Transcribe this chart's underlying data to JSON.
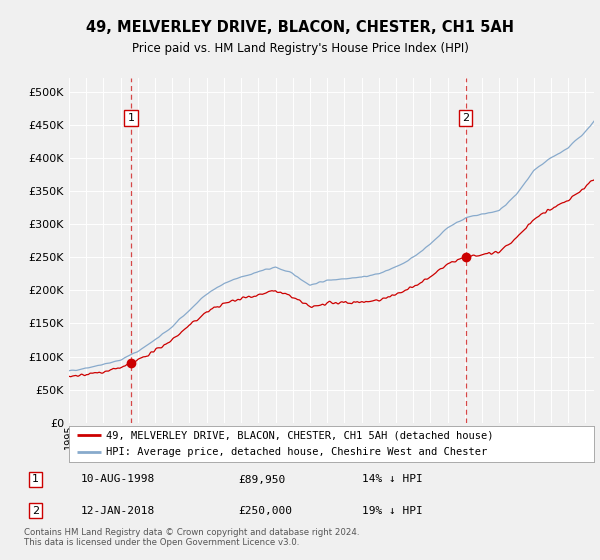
{
  "title": "49, MELVERLEY DRIVE, BLACON, CHESTER, CH1 5AH",
  "subtitle": "Price paid vs. HM Land Registry's House Price Index (HPI)",
  "background_color": "#f0f0f0",
  "plot_bg_color": "#f0f0f0",
  "legend_line1": "49, MELVERLEY DRIVE, BLACON, CHESTER, CH1 5AH (detached house)",
  "legend_line2": "HPI: Average price, detached house, Cheshire West and Chester",
  "footer": "Contains HM Land Registry data © Crown copyright and database right 2024.\nThis data is licensed under the Open Government Licence v3.0.",
  "sale1_date": "10-AUG-1998",
  "sale1_price": 89950,
  "sale1_label": "1",
  "sale1_hpi": "14% ↓ HPI",
  "sale1_x": 1998.6,
  "sale2_date": "12-JAN-2018",
  "sale2_price": 250000,
  "sale2_label": "2",
  "sale2_hpi": "19% ↓ HPI",
  "sale2_x": 2018.04,
  "xmin": 1995,
  "xmax": 2025.5,
  "ymin": 0,
  "ymax": 520000,
  "yticks": [
    0,
    50000,
    100000,
    150000,
    200000,
    250000,
    300000,
    350000,
    400000,
    450000,
    500000
  ],
  "red_color": "#cc0000",
  "blue_color": "#88aacc"
}
